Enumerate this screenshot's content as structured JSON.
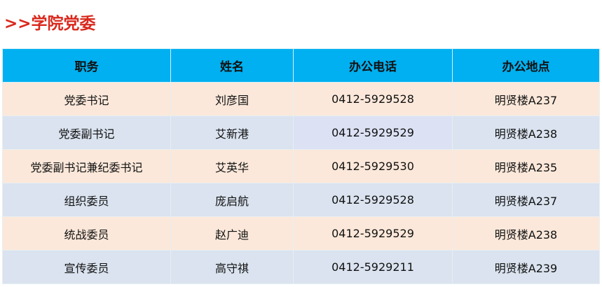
{
  "title": ">>学院党委",
  "colors": {
    "title": "#d9281c",
    "header_bg": "#00b0f0",
    "row_odd": "#fbe8da",
    "row_even": "#dae3ef"
  },
  "table": {
    "headers": [
      "职务",
      "姓名",
      "办公电话",
      "办公地点"
    ],
    "rows": [
      [
        "党委书记",
        "刘彦国",
        "0412-5929528",
        "明贤楼A237"
      ],
      [
        "党委副书记",
        "艾新港",
        "0412-5929529",
        "明贤楼A238"
      ],
      [
        "党委副书记兼纪委书记",
        "艾英华",
        "0412-5929530",
        "明贤楼A235"
      ],
      [
        "组织委员",
        "庞启航",
        "0412-5929528",
        "明贤楼A237"
      ],
      [
        "统战委员",
        "赵广迪",
        "0412-5929529",
        "明贤楼A238"
      ],
      [
        "宣传委员",
        "高守祺",
        "0412-5929211",
        "明贤楼A239"
      ]
    ]
  }
}
